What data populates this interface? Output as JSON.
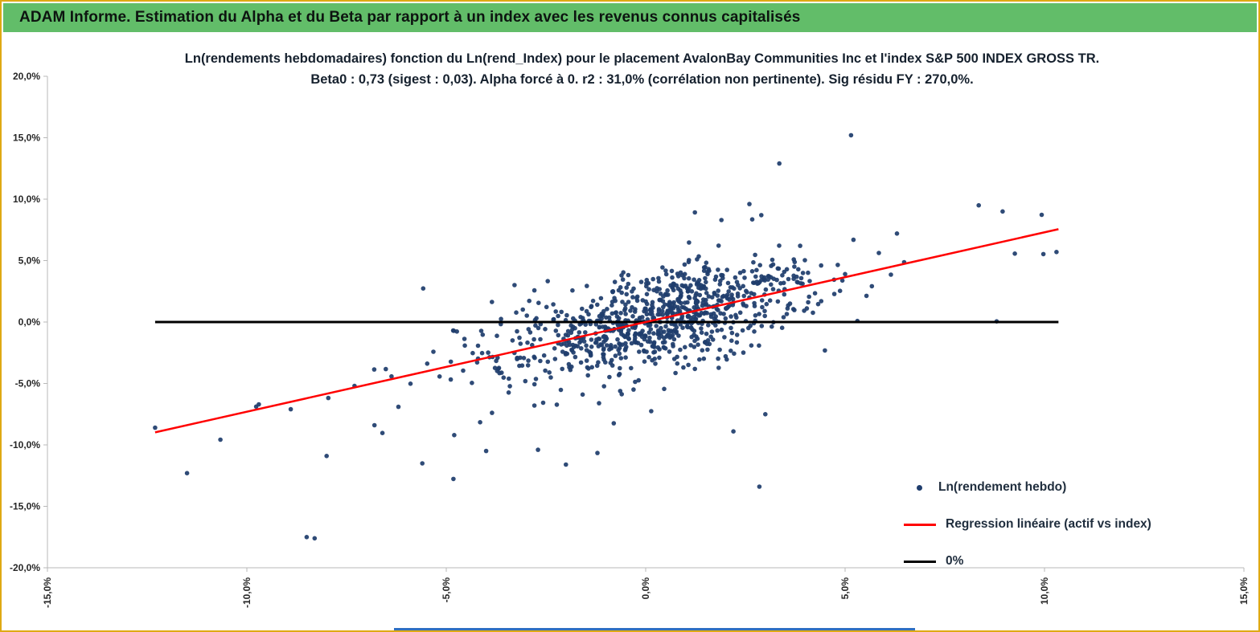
{
  "header": {
    "title": "ADAM Informe. Estimation du Alpha et du Beta par rapport à un index avec les revenus connus capitalisés"
  },
  "stats": {
    "beta0": "0,73",
    "sigest": "0,03",
    "alpha": "forcé à 0",
    "r2": "31,0%",
    "r2_note": "corrélation non pertinente",
    "sig_residu_fy": "270,0%"
  },
  "chart_data": {
    "type": "scatter",
    "title_line1": "Ln(rendements hebdomadaires) fonction du Ln(rend_Index) pour le placement AvalonBay Communities Inc et l'index S&P 500 INDEX GROSS TR.",
    "title_line2": "Beta0 : 0,73 (sigest : 0,03). Alpha forcé à 0. r2 : 31,0% (corrélation non pertinente). Sig résidu FY : 270,0%.",
    "xlabel": "",
    "ylabel": "",
    "xlim": [
      -15,
      15
    ],
    "ylim": [
      -20,
      20
    ],
    "grid": false,
    "x_ticks": {
      "values": [
        -15,
        -10,
        -5,
        0,
        5,
        10,
        15
      ],
      "labels": [
        "-15,0%",
        "-10,0%",
        "-5,0%",
        "0,0%",
        "5,0%",
        "10,0%",
        "15,0%"
      ]
    },
    "y_ticks": {
      "values": [
        20,
        15,
        10,
        5,
        0,
        -5,
        -10,
        -15,
        -20
      ],
      "labels": [
        "20,0%",
        "15,0%",
        "10,0%",
        "5,0%",
        "0,0%",
        "-5,0%",
        "-10,0%",
        "-15,0%",
        "-20,0%"
      ]
    },
    "legend": [
      "Ln(rendement hebdo)",
      "Regression linéaire (actif vs index)",
      "0%"
    ],
    "legend_position": "inside-bottom-right",
    "series_color": "#1f3d6d",
    "axis_color": "#b8b8b8",
    "regression": {
      "beta": 0.73,
      "x_start": -12.3,
      "x_end": 10.35,
      "color": "#ff0000",
      "width": 2.5
    },
    "zero_line": {
      "y": 0,
      "x_start": -12.3,
      "x_end": 10.35,
      "color": "#000000",
      "width": 3
    },
    "scatter": {
      "seed": 20240131,
      "n": 930,
      "x_components": [
        {
          "w": 0.9,
          "mean": 0.35,
          "sd": 1.9
        },
        {
          "w": 0.1,
          "mean": -0.5,
          "sd": 4.2
        }
      ],
      "beta": 0.73,
      "resid_components": [
        {
          "w": 0.88,
          "mean": 0,
          "sd": 1.9
        },
        {
          "w": 0.12,
          "mean": 0,
          "sd": 3.6
        }
      ],
      "x_clip": [
        -12.3,
        10.4
      ],
      "y_clip": [
        -17.8,
        15.3
      ],
      "point_radius": 2.8
    },
    "outlier_points": [
      [
        -12.3,
        -8.6
      ],
      [
        -11.5,
        -12.3
      ],
      [
        -9.7,
        -6.7
      ],
      [
        -8.9,
        -7.1
      ],
      [
        -8.5,
        -17.5
      ],
      [
        -8.3,
        -17.6
      ],
      [
        -8.0,
        -10.9
      ],
      [
        -7.3,
        -5.2
      ],
      [
        -6.8,
        -8.4
      ],
      [
        -6.2,
        -6.9
      ],
      [
        -5.6,
        -11.5
      ],
      [
        -4.8,
        -9.2
      ],
      [
        -4.0,
        -10.5
      ],
      [
        -2.7,
        -10.4
      ],
      [
        -2.0,
        -11.6
      ],
      [
        2.85,
        -13.4
      ],
      [
        2.2,
        -8.9
      ],
      [
        3.0,
        -7.5
      ],
      [
        5.15,
        15.2
      ],
      [
        3.35,
        12.9
      ],
      [
        2.6,
        9.6
      ],
      [
        2.9,
        8.7
      ],
      [
        1.9,
        8.3
      ],
      [
        8.35,
        9.5
      ],
      [
        8.95,
        9.0
      ],
      [
        10.3,
        5.7
      ],
      [
        8.8,
        0.05
      ],
      [
        6.3,
        7.2
      ],
      [
        5.0,
        3.9
      ],
      [
        4.4,
        4.6
      ]
    ]
  }
}
